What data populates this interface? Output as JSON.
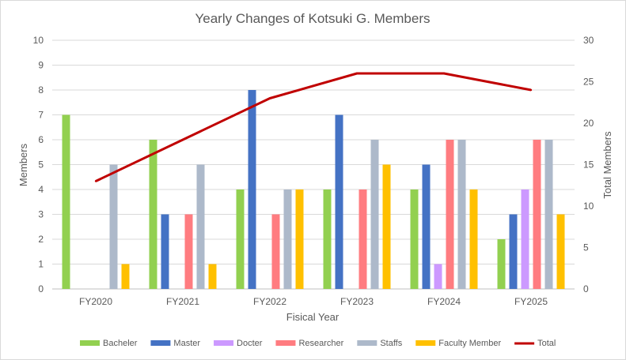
{
  "chart_data": {
    "type": "bar",
    "title": "Yearly Changes of Kotsuki G. Members",
    "xlabel": "Fisical Year",
    "ylabel": "Members",
    "y2label": "Total Members",
    "ylim": [
      0,
      10
    ],
    "y2lim": [
      0,
      30
    ],
    "yticks": [
      "0",
      "1",
      "2",
      "3",
      "4",
      "5",
      "6",
      "7",
      "8",
      "9",
      "10"
    ],
    "y2ticks": [
      "0",
      "5",
      "10",
      "15",
      "20",
      "25",
      "30"
    ],
    "grid": true,
    "legend_position": "bottom",
    "categories": [
      "FY2020",
      "FY2021",
      "FY2022",
      "FY2023",
      "FY2024",
      "FY2025"
    ],
    "series": [
      {
        "name": "Bacheler",
        "color": "#92d050",
        "values": [
          7,
          6,
          4,
          4,
          4,
          2
        ]
      },
      {
        "name": "Master",
        "color": "#4472c4",
        "values": [
          0,
          3,
          8,
          7,
          5,
          3
        ]
      },
      {
        "name": "Docter",
        "color": "#cc99ff",
        "values": [
          0,
          0,
          0,
          0,
          1,
          4
        ]
      },
      {
        "name": "Researcher",
        "color": "#ff7c80",
        "values": [
          0,
          3,
          3,
          4,
          6,
          6
        ]
      },
      {
        "name": "Staffs",
        "color": "#adb9ca",
        "values": [
          5,
          5,
          4,
          6,
          6,
          6
        ]
      },
      {
        "name": "Faculty Member",
        "color": "#ffc000",
        "values": [
          1,
          1,
          4,
          5,
          4,
          3
        ]
      }
    ],
    "line_series": {
      "name": "Total",
      "color": "#c00000",
      "axis": "secondary",
      "values": [
        13,
        18,
        23,
        26,
        26,
        24
      ]
    }
  }
}
